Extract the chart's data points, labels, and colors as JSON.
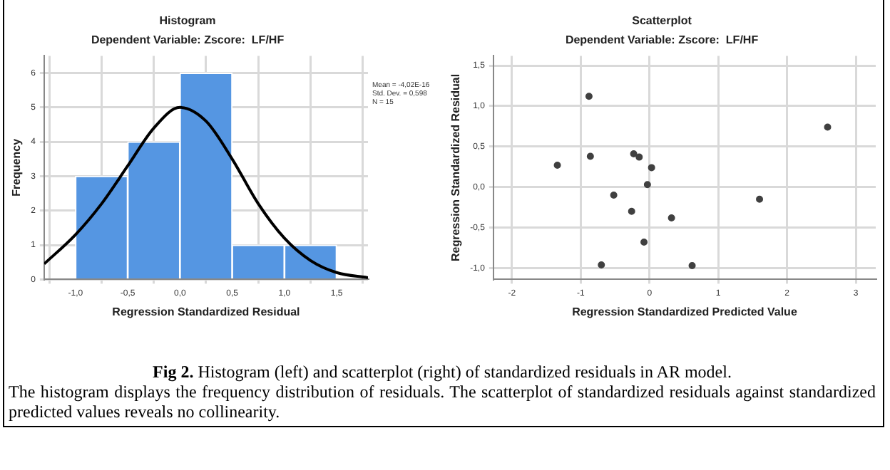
{
  "chart_data": [
    {
      "type": "histogram",
      "title": "Histogram",
      "subtitle": "Dependent Variable: Zscore:  LF/HF",
      "xlabel": "Regression Standardized Residual",
      "ylabel": "Frequency",
      "bins": [
        -1.0,
        -0.5,
        0.0,
        0.5,
        1.0,
        1.5
      ],
      "xlim": [
        -1.3,
        1.8
      ],
      "xticks": [
        {
          "value": -1.0,
          "label": "-1,0"
        },
        {
          "value": -0.5,
          "label": "-0,5"
        },
        {
          "value": 0,
          "label": "0,0"
        },
        {
          "value": 0.5,
          "label": "0,5"
        },
        {
          "value": 1.0,
          "label": "1,0"
        },
        {
          "value": 1.5,
          "label": "1,5"
        }
      ],
      "ylim": [
        0,
        6.5
      ],
      "yticks": [
        0,
        1,
        2,
        3,
        4,
        5,
        6
      ],
      "grid": true,
      "legend": false,
      "series": [
        {
          "type": "histogram",
          "color": "#5596e2",
          "values": [
            3,
            4,
            6,
            1,
            1
          ]
        },
        {
          "type": "line",
          "color": "#000000",
          "x": [
            -1.3,
            -1.0,
            -0.75,
            -0.5,
            -0.25,
            0.0,
            0.25,
            0.5,
            0.75,
            1.0,
            1.25,
            1.5,
            1.8
          ],
          "values": [
            0.45,
            1.3,
            2.2,
            3.3,
            4.4,
            5.0,
            4.6,
            3.5,
            2.2,
            1.2,
            0.55,
            0.2,
            0.05
          ]
        }
      ],
      "annotations": [
        "Mean = -4,02E-16",
        "Std. Dev. = 0,598",
        "N = 15"
      ]
    },
    {
      "type": "scatter",
      "title": "Scatterplot",
      "subtitle": "Dependent Variable: Zscore:  LF/HF",
      "xlabel": "Regression Standardized Predicted Value",
      "ylabel": "Regression Standardized Residual",
      "color": "#404040",
      "marker": "circle",
      "grid": true,
      "legend": false,
      "x": [
        -0.88,
        2.59,
        -0.86,
        -0.23,
        -0.15,
        -1.34,
        0.03,
        -0.03,
        -0.52,
        -0.26,
        1.6,
        0.32,
        -0.08,
        -0.7,
        0.62
      ],
      "values": [
        1.12,
        0.74,
        0.38,
        0.41,
        0.37,
        0.27,
        0.24,
        0.03,
        -0.1,
        -0.3,
        -0.15,
        -0.38,
        -0.68,
        -0.96,
        -0.97
      ],
      "xlim": [
        -2.27,
        3.29
      ],
      "xticks": [
        -2,
        -1,
        0,
        1,
        2,
        3
      ],
      "ylim": [
        -1.14,
        1.62
      ],
      "yticks": [
        {
          "value": -1.0,
          "label": "-1,0"
        },
        {
          "value": -0.5,
          "label": "-0,5"
        },
        {
          "value": 0,
          "label": "0,0"
        },
        {
          "value": 0.5,
          "label": "0,5"
        },
        {
          "value": 1.0,
          "label": "1,0"
        },
        {
          "value": 1.5,
          "label": "1,5"
        }
      ]
    },
    {
      "type": "other",
      "annotations": [
        "Fig 2. Histogram (left) and scatterplot (right) of standardized residuals in AR model.",
        "The histogram displays the frequency distribution of residuals. The scatterplot of standardized residuals against standardized predicted values reveals no collinearity."
      ]
    }
  ]
}
